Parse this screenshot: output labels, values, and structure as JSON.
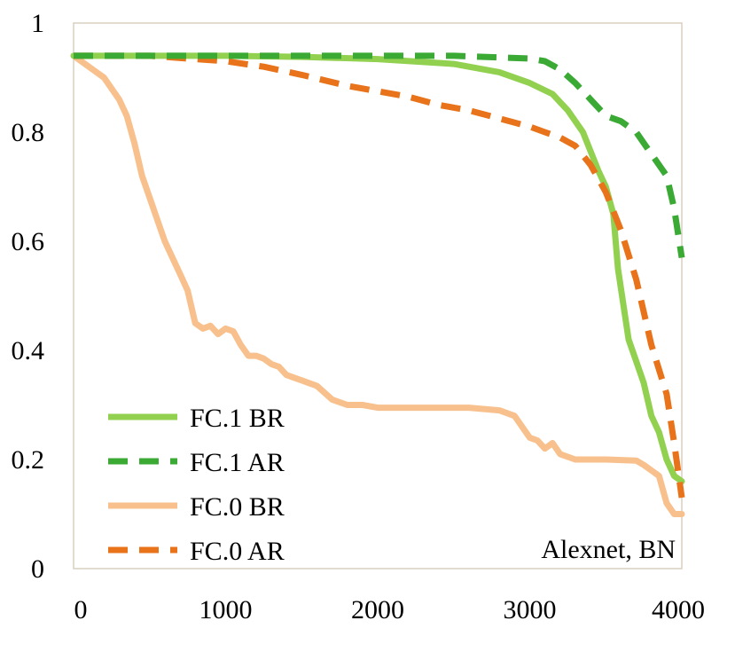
{
  "chart_data": {
    "type": "line",
    "title": "",
    "xlabel": "",
    "ylabel": "",
    "xlim": [
      0,
      4000
    ],
    "ylim": [
      0,
      1
    ],
    "xticks": [
      "0",
      "1000",
      "2000",
      "3000",
      "4000"
    ],
    "xtick_values": [
      0,
      1000,
      2000,
      3000,
      4000
    ],
    "yticks": [
      "0",
      "0.2",
      "0.4",
      "0.6",
      "0.8",
      "1"
    ],
    "ytick_values": [
      0,
      0.2,
      0.4,
      0.6,
      0.8,
      1
    ],
    "grid": false,
    "legend_position": "bottom-left",
    "annotation": "Alexnet, BN",
    "series": [
      {
        "name": "FC.1 BR",
        "color": "#92d050",
        "dash": "solid",
        "x": [
          0,
          500,
          1000,
          1500,
          2000,
          2500,
          2800,
          3000,
          3150,
          3250,
          3350,
          3450,
          3500,
          3550,
          3580,
          3650,
          3700,
          3750,
          3800,
          3850,
          3900,
          3950,
          4000
        ],
        "y": [
          0.94,
          0.94,
          0.94,
          0.938,
          0.934,
          0.925,
          0.91,
          0.89,
          0.87,
          0.84,
          0.8,
          0.73,
          0.7,
          0.65,
          0.55,
          0.42,
          0.38,
          0.34,
          0.28,
          0.25,
          0.2,
          0.17,
          0.16
        ]
      },
      {
        "name": "FC.1 AR",
        "color": "#3aaa35",
        "dash": "dashed",
        "x": [
          0,
          500,
          1000,
          1500,
          2000,
          2500,
          2900,
          3000,
          3100,
          3200,
          3300,
          3400,
          3500,
          3600,
          3700,
          3800,
          3900,
          3950,
          4000
        ],
        "y": [
          0.94,
          0.94,
          0.94,
          0.94,
          0.94,
          0.94,
          0.936,
          0.935,
          0.93,
          0.915,
          0.89,
          0.86,
          0.83,
          0.82,
          0.8,
          0.76,
          0.72,
          0.66,
          0.57
        ]
      },
      {
        "name": "FC.0 BR",
        "color": "#f8c08c",
        "dash": "solid",
        "x": [
          0,
          100,
          200,
          300,
          350,
          400,
          450,
          500,
          550,
          600,
          650,
          700,
          750,
          800,
          850,
          900,
          950,
          1000,
          1050,
          1100,
          1150,
          1200,
          1250,
          1300,
          1350,
          1400,
          1450,
          1500,
          1550,
          1600,
          1700,
          1800,
          1900,
          2000,
          2200,
          2400,
          2600,
          2800,
          2900,
          3000,
          3050,
          3100,
          3150,
          3200,
          3300,
          3500,
          3700,
          3750,
          3800,
          3850,
          3900,
          3950,
          4000
        ],
        "y": [
          0.94,
          0.92,
          0.9,
          0.86,
          0.83,
          0.78,
          0.72,
          0.68,
          0.64,
          0.6,
          0.57,
          0.54,
          0.51,
          0.45,
          0.44,
          0.445,
          0.43,
          0.44,
          0.435,
          0.41,
          0.39,
          0.39,
          0.385,
          0.375,
          0.37,
          0.355,
          0.35,
          0.345,
          0.34,
          0.335,
          0.31,
          0.3,
          0.3,
          0.295,
          0.295,
          0.295,
          0.295,
          0.29,
          0.28,
          0.24,
          0.235,
          0.22,
          0.23,
          0.21,
          0.2,
          0.2,
          0.198,
          0.19,
          0.18,
          0.17,
          0.12,
          0.1,
          0.1
        ]
      },
      {
        "name": "FC.0 AR",
        "color": "#e8731a",
        "dash": "dashed",
        "x": [
          0,
          500,
          1000,
          1250,
          1500,
          1800,
          2000,
          2200,
          2400,
          2600,
          2800,
          3000,
          3100,
          3200,
          3300,
          3400,
          3500,
          3600,
          3700,
          3800,
          3900,
          3950,
          4000
        ],
        "y": [
          0.94,
          0.94,
          0.93,
          0.92,
          0.905,
          0.885,
          0.875,
          0.865,
          0.85,
          0.84,
          0.825,
          0.81,
          0.8,
          0.79,
          0.775,
          0.74,
          0.69,
          0.62,
          0.53,
          0.41,
          0.32,
          0.23,
          0.13
        ]
      }
    ]
  }
}
